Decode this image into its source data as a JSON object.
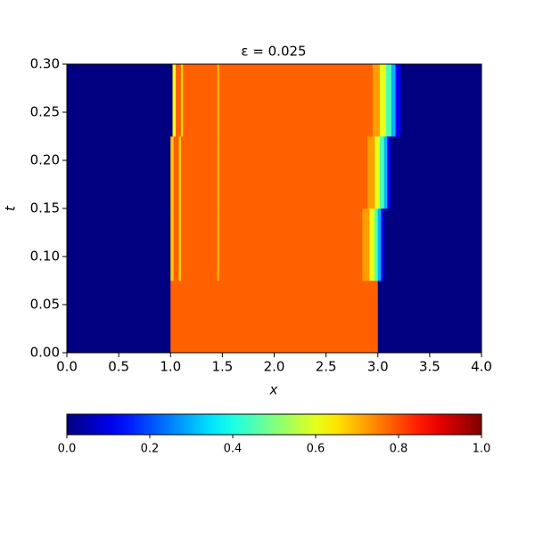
{
  "chart_data": {
    "type": "heatmap",
    "title": "ε = 0.025",
    "xlabel": "x",
    "ylabel": "t",
    "xlim": [
      0,
      4
    ],
    "ylim": [
      0,
      0.3
    ],
    "xticks": [
      {
        "value": 0,
        "label": "0.0"
      },
      {
        "value": 0.5,
        "label": "0.5"
      },
      {
        "value": 1,
        "label": "1.0"
      },
      {
        "value": 1.5,
        "label": "1.5"
      },
      {
        "value": 2,
        "label": "2.0"
      },
      {
        "value": 2.5,
        "label": "2.5"
      },
      {
        "value": 3,
        "label": "3.0"
      },
      {
        "value": 3.5,
        "label": "3.5"
      },
      {
        "value": 4,
        "label": "4.0"
      }
    ],
    "yticks": [
      {
        "value": 0,
        "label": "0.00"
      },
      {
        "value": 0.05,
        "label": "0.05"
      },
      {
        "value": 0.1,
        "label": "0.10"
      },
      {
        "value": 0.15,
        "label": "0.15"
      },
      {
        "value": 0.2,
        "label": "0.20"
      },
      {
        "value": 0.25,
        "label": "0.25"
      },
      {
        "value": 0.3,
        "label": "0.30"
      }
    ],
    "clim": [
      0,
      1
    ],
    "cticks": [
      {
        "value": 0,
        "label": "0.0"
      },
      {
        "value": 0.2,
        "label": "0.2"
      },
      {
        "value": 0.4,
        "label": "0.4"
      },
      {
        "value": 0.6,
        "label": "0.6"
      },
      {
        "value": 0.8,
        "label": "0.8"
      },
      {
        "value": 1,
        "label": "1.0"
      }
    ],
    "t_edges": [
      0,
      0.075,
      0.15,
      0.225,
      0.3
    ],
    "rows": [
      {
        "bins": [
          0,
          1,
          3,
          4
        ],
        "values": [
          0,
          0.78,
          0
        ]
      },
      {
        "bins": [
          0,
          1,
          1.03,
          1.08,
          1.1,
          1.45,
          1.47,
          2.85,
          2.92,
          2.97,
          3.0,
          3.03,
          3.06,
          4
        ],
        "values": [
          0,
          0.68,
          0.78,
          0.66,
          0.78,
          0.7,
          0.78,
          0.72,
          0.6,
          0.45,
          0.3,
          0.12,
          0
        ]
      },
      {
        "bins": [
          0,
          1,
          1.03,
          1.08,
          1.1,
          1.45,
          1.47,
          2.9,
          2.97,
          3.02,
          3.06,
          3.09,
          3.12,
          4
        ],
        "values": [
          0,
          0.68,
          0.78,
          0.66,
          0.78,
          0.7,
          0.78,
          0.72,
          0.6,
          0.45,
          0.3,
          0.12,
          0
        ]
      },
      {
        "bins": [
          0,
          1.02,
          1.05,
          1.1,
          1.12,
          1.45,
          1.47,
          2.95,
          3.02,
          3.08,
          3.13,
          3.17,
          3.22,
          4
        ],
        "values": [
          0,
          0.62,
          0.78,
          0.66,
          0.78,
          0.7,
          0.78,
          0.72,
          0.6,
          0.45,
          0.3,
          0.12,
          0
        ]
      }
    ]
  }
}
